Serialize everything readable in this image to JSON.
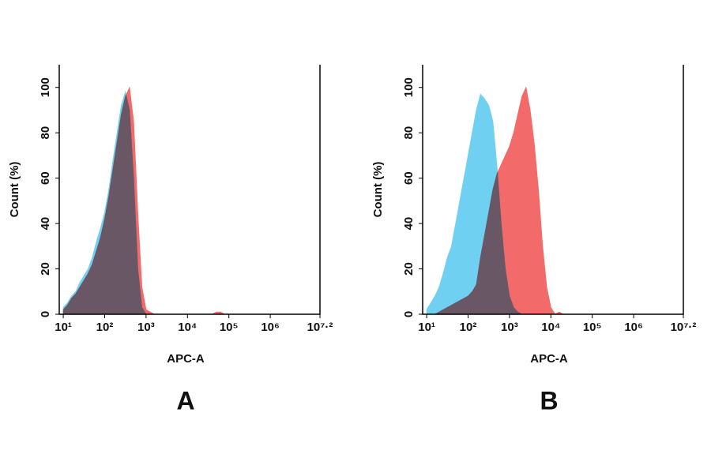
{
  "chart_data": [
    {
      "type": "area",
      "xscale": "log",
      "panel_label": "A",
      "ylabel": "Count (%)",
      "xlabel": "APC-A",
      "x": [
        10,
        12.6,
        15.8,
        20,
        25.1,
        31.6,
        39.8,
        50.1,
        63.1,
        79.4,
        100,
        125.9,
        158.5,
        199.5,
        251.2,
        316.2,
        398.1,
        501.2,
        631,
        794.3,
        1000,
        1259,
        1585,
        1995,
        2512,
        3162,
        3981,
        5012,
        6310,
        7943,
        10000,
        12589,
        15849,
        19953,
        25119,
        31623,
        39811,
        50119,
        63096,
        79433,
        100000
      ],
      "series": [
        {
          "color": "#f26a6a",
          "values": [
            2,
            4,
            7,
            9,
            12,
            15,
            18,
            22,
            28,
            34,
            42,
            52,
            64,
            76,
            88,
            96,
            100,
            85,
            45,
            12,
            2,
            1,
            0,
            0,
            0,
            0,
            0,
            0,
            0,
            0,
            0,
            0,
            0,
            0,
            0,
            0,
            0,
            1,
            1,
            0,
            0
          ]
        },
        {
          "color": "#6fd0f2",
          "values": [
            3,
            5,
            8,
            10,
            14,
            17,
            20,
            25,
            32,
            38,
            45,
            55,
            68,
            80,
            92,
            98,
            90,
            60,
            20,
            3,
            0,
            0,
            0,
            0,
            0,
            0,
            0,
            0,
            0,
            0,
            0,
            0,
            0,
            0,
            0,
            0,
            0,
            0,
            0,
            0,
            0
          ]
        }
      ],
      "xlim": [
        8,
        15848932
      ],
      "ylim": [
        0,
        110
      ],
      "xticks": [
        {
          "value": 10,
          "label": "10¹"
        },
        {
          "value": 100,
          "label": "10²"
        },
        {
          "value": 1000,
          "label": "10³"
        },
        {
          "value": 10000,
          "label": "10⁴"
        },
        {
          "value": 100000,
          "label": "10⁵"
        },
        {
          "value": 1000000,
          "label": "10⁶"
        },
        {
          "value": 15848932,
          "label": "10⁷·²"
        }
      ],
      "yticks": [
        0,
        20,
        40,
        60,
        80,
        100
      ]
    },
    {
      "type": "area",
      "xscale": "log",
      "panel_label": "B",
      "ylabel": "Count (%)",
      "xlabel": "APC-A",
      "x": [
        10,
        12.6,
        15.8,
        20,
        25.1,
        31.6,
        39.8,
        50.1,
        63.1,
        79.4,
        100,
        125.9,
        158.5,
        199.5,
        251.2,
        316.2,
        398.1,
        501.2,
        631,
        794.3,
        1000,
        1259,
        1585,
        1995,
        2512,
        3162,
        3981,
        5012,
        6310,
        7943,
        10000,
        12589,
        15849,
        19953,
        25119,
        31623,
        39811,
        50119,
        63096,
        79433,
        100000
      ],
      "series": [
        {
          "color": "#f26a6a",
          "values": [
            0,
            0,
            0,
            1,
            2,
            3,
            4,
            5,
            6,
            7,
            8,
            10,
            13,
            25,
            35,
            45,
            55,
            62,
            66,
            70,
            74,
            80,
            88,
            96,
            100,
            90,
            75,
            55,
            30,
            12,
            3,
            0,
            1,
            0,
            0,
            0,
            0,
            0,
            0,
            0,
            0
          ]
        },
        {
          "color": "#6fd0f2",
          "values": [
            2,
            5,
            8,
            12,
            18,
            25,
            30,
            40,
            50,
            60,
            70,
            80,
            90,
            97,
            95,
            92,
            85,
            65,
            40,
            20,
            8,
            3,
            1,
            0,
            0,
            0,
            0,
            0,
            0,
            0,
            0,
            0,
            0,
            0,
            0,
            0,
            0,
            0,
            0,
            0,
            0
          ]
        }
      ],
      "xlim": [
        8,
        15848932
      ],
      "ylim": [
        0,
        110
      ],
      "xticks": [
        {
          "value": 10,
          "label": "10¹"
        },
        {
          "value": 100,
          "label": "10²"
        },
        {
          "value": 1000,
          "label": "10³"
        },
        {
          "value": 10000,
          "label": "10⁴"
        },
        {
          "value": 100000,
          "label": "10⁵"
        },
        {
          "value": 1000000,
          "label": "10⁶"
        },
        {
          "value": 15848932,
          "label": "10⁷·²"
        }
      ],
      "yticks": [
        0,
        20,
        40,
        60,
        80,
        100
      ]
    }
  ]
}
